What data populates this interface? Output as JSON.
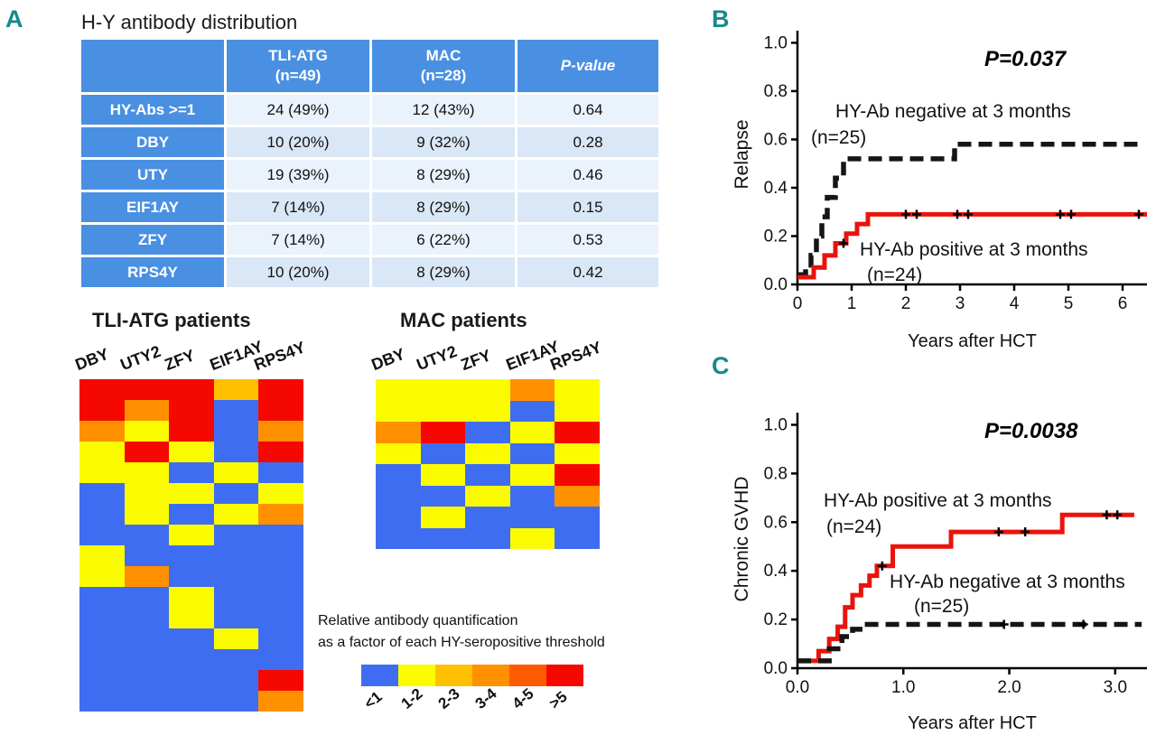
{
  "panel_labels": {
    "a": "A",
    "b": "B",
    "c": "C"
  },
  "colors": {
    "panel_letter": "#17898c",
    "table_header_bg": "#4a90e2",
    "table_row_bg_odd": "#eaf2fc",
    "table_row_bg_even": "#d9e7f6",
    "km_positive": "#e8140c",
    "km_negative": "#151515"
  },
  "table": {
    "title": "H-Y antibody distribution",
    "col_headers": [
      "",
      "TLI-ATG\n(n=49)",
      "MAC\n(n=28)",
      "P-value"
    ],
    "rows": [
      {
        "label": "HY-Abs >=1",
        "tli": "24 (49%)",
        "mac": "12 (43%)",
        "p": "0.64"
      },
      {
        "label": "DBY",
        "tli": "10 (20%)",
        "mac": "9 (32%)",
        "p": "0.28"
      },
      {
        "label": "UTY",
        "tli": "19 (39%)",
        "mac": "8 (29%)",
        "p": "0.46"
      },
      {
        "label": "EIF1AY",
        "tli": "7 (14%)",
        "mac": "8 (29%)",
        "p": "0.15"
      },
      {
        "label": "ZFY",
        "tli": "7 (14%)",
        "mac": "6 (22%)",
        "p": "0.53"
      },
      {
        "label": "RPS4Y",
        "tli": "10 (20%)",
        "mac": "8 (29%)",
        "p": "0.42"
      }
    ]
  },
  "legend": {
    "caption_line1": "Relative antibody quantification",
    "caption_line2": "as a factor of each HY-seropositive threshold",
    "bins": [
      "<1",
      "1-2",
      "2-3",
      "3-4",
      "4-5",
      ">5"
    ],
    "colors": [
      "#3f6df2",
      "#fcfc00",
      "#ffc000",
      "#ff9000",
      "#ff5a00",
      "#f50800"
    ]
  },
  "chart_data": [
    {
      "type": "heatmap",
      "id": "tli",
      "title": "TLI-ATG patients",
      "columns": [
        "DBY",
        "UTY2",
        "ZFY",
        "EIF1AY",
        "RPS4Y"
      ],
      "bin_labels": [
        "<1",
        "1-2",
        "2-3",
        "3-4",
        "4-5",
        ">5"
      ],
      "grid": [
        [
          5,
          5,
          5,
          2,
          5
        ],
        [
          5,
          3,
          5,
          0,
          5
        ],
        [
          3,
          1,
          5,
          0,
          3
        ],
        [
          1,
          5,
          1,
          0,
          5
        ],
        [
          1,
          1,
          0,
          1,
          0
        ],
        [
          0,
          1,
          1,
          0,
          1
        ],
        [
          0,
          1,
          0,
          1,
          3
        ],
        [
          0,
          0,
          1,
          0,
          0
        ],
        [
          1,
          0,
          0,
          0,
          0
        ],
        [
          1,
          3,
          0,
          0,
          0
        ],
        [
          0,
          0,
          1,
          0,
          0
        ],
        [
          0,
          0,
          1,
          0,
          0
        ],
        [
          0,
          0,
          0,
          1,
          0
        ],
        [
          0,
          0,
          0,
          0,
          0
        ],
        [
          0,
          0,
          0,
          0,
          5
        ],
        [
          0,
          0,
          0,
          0,
          3
        ]
      ]
    },
    {
      "type": "heatmap",
      "id": "mac",
      "title": "MAC patients",
      "columns": [
        "DBY",
        "UTY2",
        "ZFY",
        "EIF1AY",
        "RPS4Y"
      ],
      "bin_labels": [
        "<1",
        "1-2",
        "2-3",
        "3-4",
        "4-5",
        ">5"
      ],
      "grid": [
        [
          1,
          1,
          1,
          3,
          1
        ],
        [
          1,
          1,
          1,
          0,
          1
        ],
        [
          3,
          5,
          0,
          1,
          5
        ],
        [
          1,
          0,
          1,
          0,
          1
        ],
        [
          0,
          1,
          0,
          1,
          5
        ],
        [
          0,
          0,
          1,
          0,
          3
        ],
        [
          0,
          1,
          0,
          0,
          0
        ],
        [
          0,
          0,
          0,
          1,
          0
        ]
      ]
    },
    {
      "type": "line",
      "id": "relapse",
      "p_value": "P=0.037",
      "ylabel": "Relapse",
      "xlabel": "Years after HCT",
      "xlim": [
        0,
        6.45
      ],
      "ylim": [
        0,
        1.05
      ],
      "xticks": [
        "0",
        "1",
        "2",
        "3",
        "4",
        "5",
        "6"
      ],
      "xtick_vals": [
        0,
        1,
        2,
        3,
        4,
        5,
        6
      ],
      "yticks": [
        "0.0",
        "0.2",
        "0.4",
        "0.6",
        "0.8",
        "1.0"
      ],
      "ytick_vals": [
        0,
        0.2,
        0.4,
        0.6,
        0.8,
        1.0
      ],
      "series": [
        {
          "name": "HY-Ab negative at 3 months",
          "n_label": "(n=25)",
          "style": "dashed",
          "color": "#151515",
          "steps": [
            [
              0,
              0.04
            ],
            [
              0.15,
              0.08
            ],
            [
              0.25,
              0.12
            ],
            [
              0.35,
              0.2
            ],
            [
              0.45,
              0.28
            ],
            [
              0.55,
              0.36
            ],
            [
              0.7,
              0.44
            ],
            [
              0.85,
              0.52
            ],
            [
              2.9,
              0.58
            ],
            [
              6.4,
              0.58
            ]
          ],
          "censors": []
        },
        {
          "name": "HY-Ab positive at 3 months",
          "n_label": "(n=24)",
          "style": "solid",
          "color": "#e8140c",
          "steps": [
            [
              0,
              0.03
            ],
            [
              0.3,
              0.07
            ],
            [
              0.5,
              0.12
            ],
            [
              0.7,
              0.17
            ],
            [
              0.9,
              0.21
            ],
            [
              1.1,
              0.25
            ],
            [
              1.3,
              0.29
            ],
            [
              6.45,
              0.29
            ]
          ],
          "censors": [
            [
              0.85,
              0.17
            ],
            [
              2.0,
              0.29
            ],
            [
              2.2,
              0.29
            ],
            [
              2.95,
              0.29
            ],
            [
              3.15,
              0.29
            ],
            [
              4.85,
              0.29
            ],
            [
              5.05,
              0.29
            ],
            [
              6.3,
              0.29
            ]
          ]
        }
      ]
    },
    {
      "type": "line",
      "id": "cgvhd",
      "p_value": "P=0.0038",
      "ylabel": "Chronic GVHD",
      "xlabel": "Years after HCT",
      "xlim": [
        0,
        3.3
      ],
      "ylim": [
        0,
        1.05
      ],
      "xticks": [
        "0.0",
        "1.0",
        "2.0",
        "3.0"
      ],
      "xtick_vals": [
        0,
        1,
        2,
        3
      ],
      "yticks": [
        "0.0",
        "0.2",
        "0.4",
        "0.6",
        "0.8",
        "1.0"
      ],
      "ytick_vals": [
        0,
        0.2,
        0.4,
        0.6,
        0.8,
        1.0
      ],
      "series": [
        {
          "name": "HY-Ab positive at 3 months",
          "n_label": "(n=24)",
          "style": "solid",
          "color": "#e8140c",
          "steps": [
            [
              0,
              0.03
            ],
            [
              0.2,
              0.07
            ],
            [
              0.3,
              0.12
            ],
            [
              0.38,
              0.17
            ],
            [
              0.45,
              0.25
            ],
            [
              0.52,
              0.3
            ],
            [
              0.6,
              0.34
            ],
            [
              0.68,
              0.38
            ],
            [
              0.75,
              0.42
            ],
            [
              0.9,
              0.5
            ],
            [
              1.45,
              0.56
            ],
            [
              2.5,
              0.63
            ],
            [
              3.18,
              0.63
            ]
          ],
          "censors": [
            [
              0.8,
              0.42
            ],
            [
              1.9,
              0.56
            ],
            [
              2.15,
              0.56
            ],
            [
              2.92,
              0.63
            ],
            [
              3.02,
              0.63
            ]
          ]
        },
        {
          "name": "HY-Ab negative at 3 months",
          "n_label": "(n=25)",
          "style": "dashed",
          "color": "#151515",
          "steps": [
            [
              0,
              0.03
            ],
            [
              0.3,
              0.08
            ],
            [
              0.42,
              0.13
            ],
            [
              0.52,
              0.16
            ],
            [
              0.62,
              0.18
            ],
            [
              3.25,
              0.18
            ]
          ],
          "censors": [
            [
              1.95,
              0.18
            ],
            [
              2.7,
              0.18
            ]
          ]
        }
      ]
    }
  ]
}
